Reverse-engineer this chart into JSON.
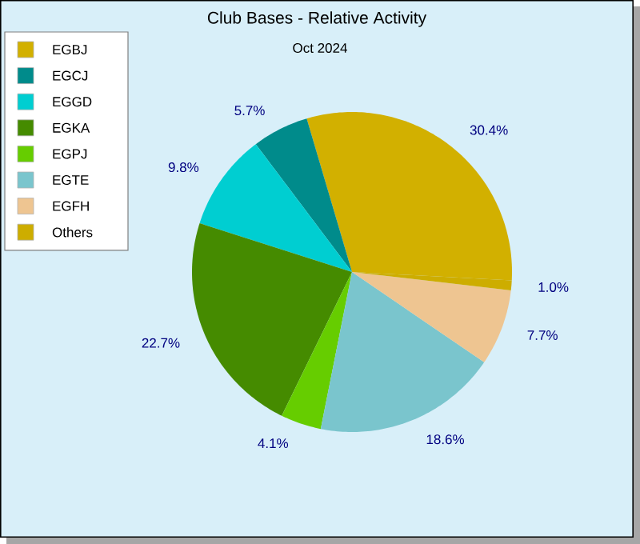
{
  "chart_data": {
    "type": "pie",
    "title": "Club Bases - Relative Activity",
    "subtitle": "Oct 2024",
    "categories": [
      "EGBJ",
      "EGCJ",
      "EGGD",
      "EGKA",
      "EGPJ",
      "EGTE",
      "EGFH",
      "Others"
    ],
    "values": [
      30.4,
      5.7,
      9.8,
      22.7,
      4.1,
      18.6,
      7.7,
      1.0
    ],
    "value_labels": [
      "30.4%",
      "5.7%",
      "9.8%",
      "22.7%",
      "4.1%",
      "18.6%",
      "7.7%",
      "1.0%"
    ],
    "colors": [
      "#d2b000",
      "#008b8b",
      "#00ced1",
      "#458b00",
      "#66cd00",
      "#7ac5cd",
      "#eec591",
      "#cdad00"
    ],
    "legend": "top left"
  }
}
